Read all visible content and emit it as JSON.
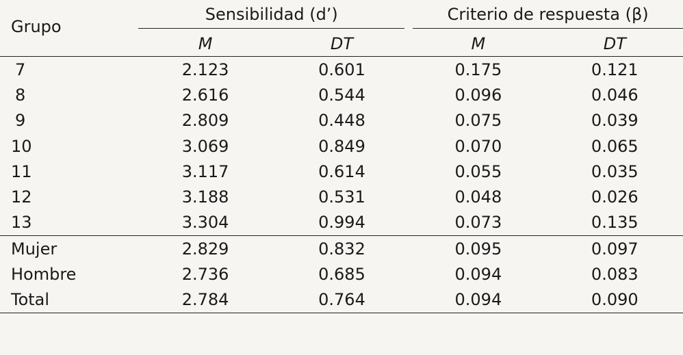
{
  "header": {
    "group_label": "Grupo",
    "sensitivity_label": "Sensibilidad (d’)",
    "criterion_label": "Criterio de respuesta (β)",
    "sub_labels": [
      "M",
      "DT",
      "M",
      "DT"
    ]
  },
  "rows": [
    {
      "label": "7",
      "values": [
        "2.123",
        "0.601",
        "0.175",
        "0.121"
      ]
    },
    {
      "label": "8",
      "values": [
        "2.616",
        "0.544",
        "0.096",
        "0.046"
      ]
    },
    {
      "label": "9",
      "values": [
        "2.809",
        "0.448",
        "0.075",
        "0.039"
      ]
    },
    {
      "label": "10",
      "values": [
        "3.069",
        "0.849",
        "0.070",
        "0.065"
      ]
    },
    {
      "label": "11",
      "values": [
        "3.117",
        "0.614",
        "0.055",
        "0.035"
      ]
    },
    {
      "label": "12",
      "values": [
        "3.188",
        "0.531",
        "0.048",
        "0.026"
      ]
    },
    {
      "label": "13",
      "values": [
        "3.304",
        "0.994",
        "0.073",
        "0.135"
      ]
    },
    {
      "label": "Mujer",
      "values": [
        "2.829",
        "0.832",
        "0.095",
        "0.097"
      ]
    },
    {
      "label": "Hombre",
      "values": [
        "2.736",
        "0.685",
        "0.094",
        "0.083"
      ]
    },
    {
      "label": "Total",
      "values": [
        "2.784",
        "0.764",
        "0.094",
        "0.090"
      ]
    }
  ]
}
